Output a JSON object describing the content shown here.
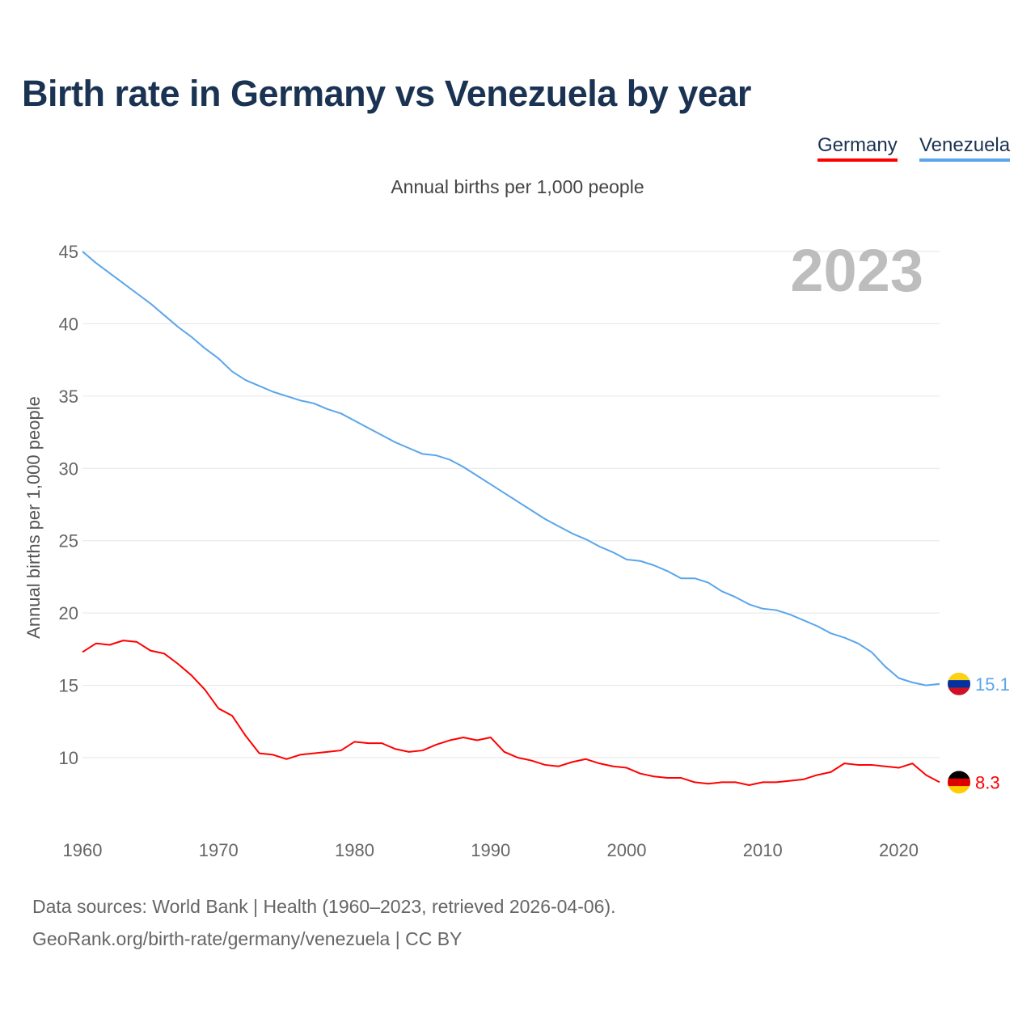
{
  "title": "Birth rate in Germany vs Venezuela by year",
  "legend": [
    {
      "label": "Germany",
      "color": "#ff0000"
    },
    {
      "label": "Venezuela",
      "color": "#5aa5ec"
    }
  ],
  "subtitle": "Annual births per 1,000 people",
  "year_display": "2023",
  "source_line1": "Data sources: World Bank | Health (1960–2023, retrieved 2026-04-06).",
  "source_line2": "GeoRank.org/birth-rate/germany/venezuela | CC BY",
  "chart_data": {
    "type": "line",
    "title": "Birth rate in Germany vs Venezuela by year",
    "xlabel": "",
    "ylabel": "Annual births per 1,000 people",
    "xlim": [
      1960,
      2023
    ],
    "ylim": [
      10,
      45
    ],
    "x_ticks": [
      1960,
      1970,
      1980,
      1990,
      2000,
      2010,
      2020
    ],
    "y_ticks": [
      10,
      15,
      20,
      25,
      30,
      35,
      40,
      45
    ],
    "grid": true,
    "legend_position": "top-right",
    "x_start": 1960,
    "series": [
      {
        "name": "Germany",
        "color": "#ff0000",
        "end_label": "8.3",
        "flag": "germany-flag",
        "values": [
          17.3,
          17.9,
          17.8,
          18.1,
          18.0,
          17.4,
          17.2,
          16.5,
          15.7,
          14.7,
          13.4,
          12.9,
          11.5,
          10.3,
          10.2,
          9.9,
          10.2,
          10.3,
          10.4,
          10.5,
          11.1,
          11.0,
          11.0,
          10.6,
          10.4,
          10.5,
          10.9,
          11.2,
          11.4,
          11.2,
          11.4,
          10.4,
          10.0,
          9.8,
          9.5,
          9.4,
          9.7,
          9.9,
          9.6,
          9.4,
          9.3,
          8.9,
          8.7,
          8.6,
          8.6,
          8.3,
          8.2,
          8.3,
          8.3,
          8.1,
          8.3,
          8.3,
          8.4,
          8.5,
          8.8,
          9.0,
          9.6,
          9.5,
          9.5,
          9.4,
          9.3,
          9.6,
          8.8,
          8.3
        ]
      },
      {
        "name": "Venezuela",
        "color": "#5aa5ec",
        "end_label": "15.1",
        "flag": "venezuela-flag",
        "values": [
          45.0,
          44.2,
          43.5,
          42.8,
          42.1,
          41.4,
          40.6,
          39.8,
          39.1,
          38.3,
          37.6,
          36.7,
          36.1,
          35.7,
          35.3,
          35.0,
          34.7,
          34.5,
          34.1,
          33.8,
          33.3,
          32.8,
          32.3,
          31.8,
          31.4,
          31.0,
          30.9,
          30.6,
          30.1,
          29.5,
          28.9,
          28.3,
          27.7,
          27.1,
          26.5,
          26.0,
          25.5,
          25.1,
          24.6,
          24.2,
          23.7,
          23.6,
          23.3,
          22.9,
          22.4,
          22.4,
          22.1,
          21.5,
          21.1,
          20.6,
          20.3,
          20.2,
          19.9,
          19.5,
          19.1,
          18.6,
          18.3,
          17.9,
          17.3,
          16.3,
          15.5,
          15.2,
          15.0,
          15.1
        ]
      }
    ]
  }
}
